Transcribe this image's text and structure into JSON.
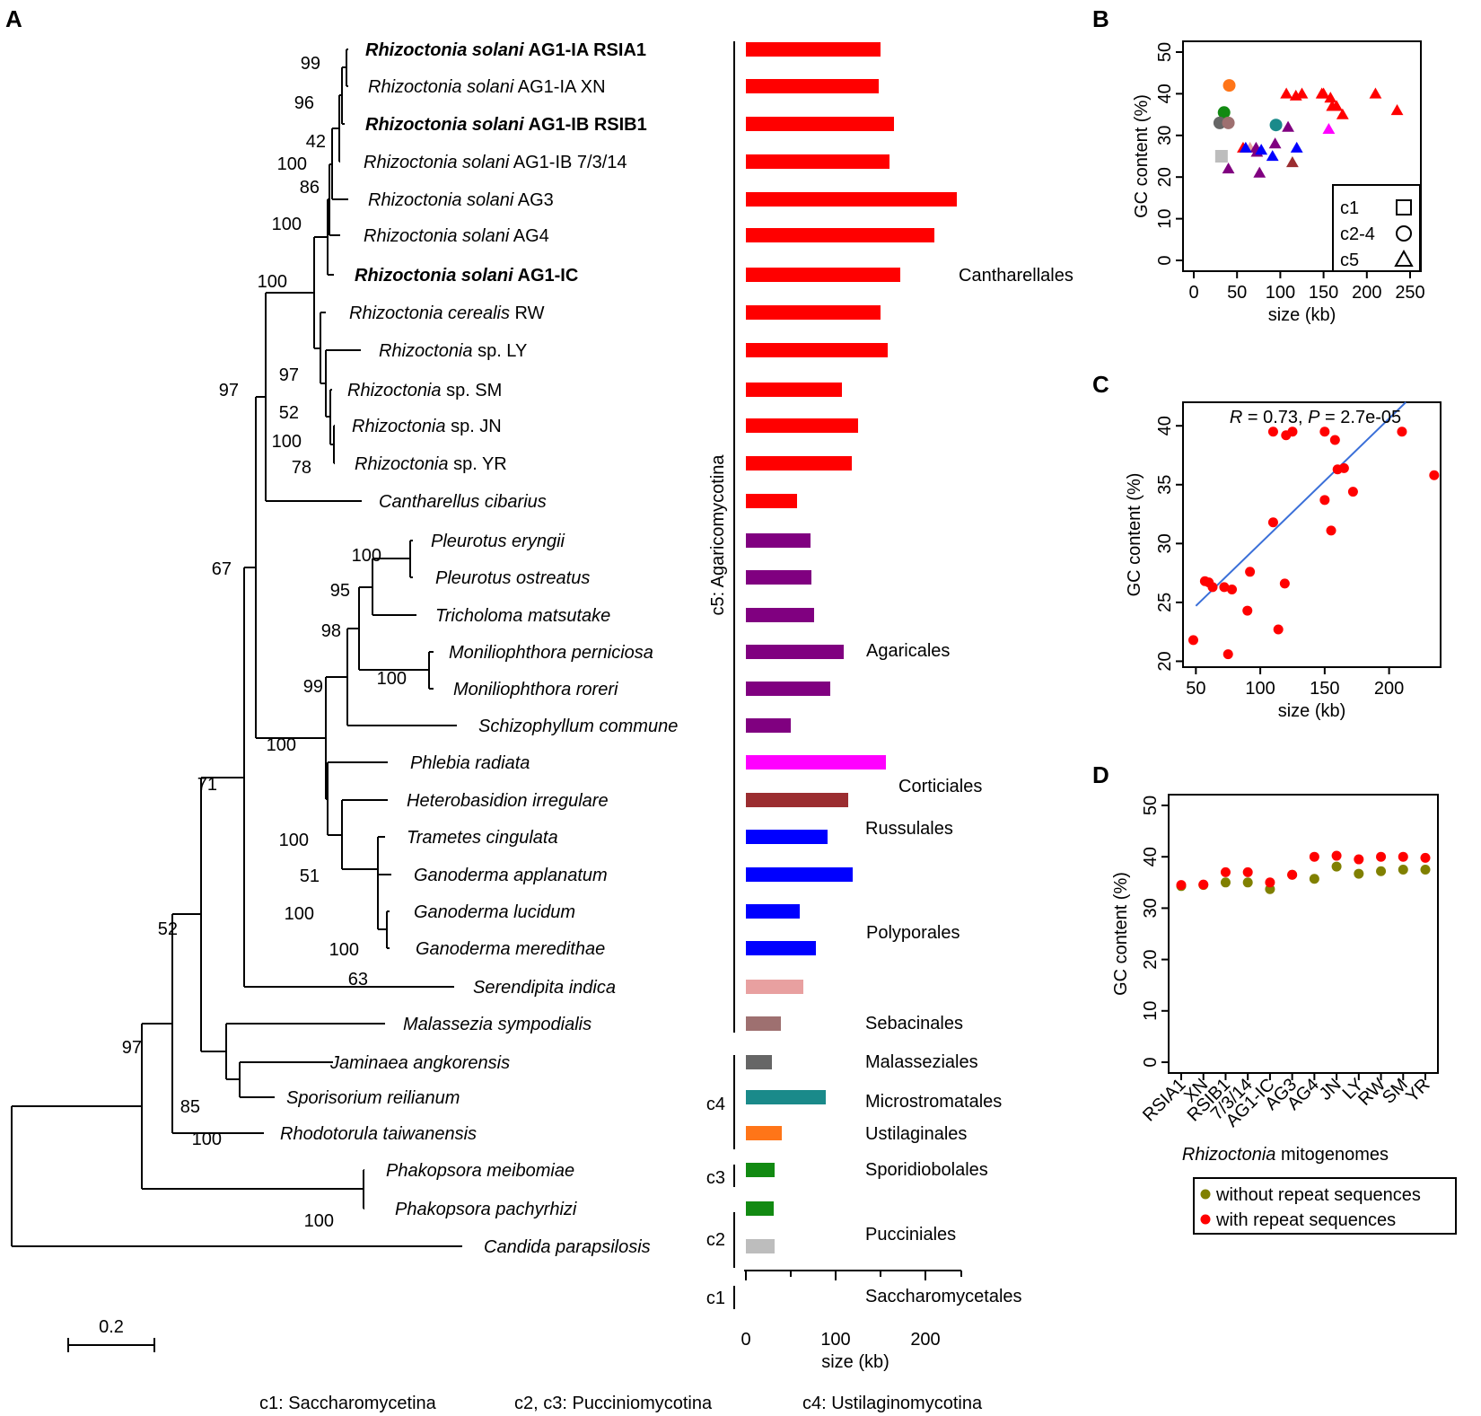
{
  "figure": {
    "panel_labels": {
      "A": "A",
      "B": "B",
      "C": "C",
      "D": "D"
    },
    "scale_bar_label": "0.2",
    "footer": {
      "c1": "c1: Saccharomycetina",
      "c23": "c2, c3: Pucciniomycotina",
      "c4": "c4: Ustilaginomycotina"
    }
  },
  "colors": {
    "Cantharellales": "#ff0000",
    "Agaricales": "#800080",
    "Corticiales": "#ff00ff",
    "Russulales": "#9b2d30",
    "Polyporales": "#0000ff",
    "Sebacinales": "#e8a0a0",
    "Malasseziales": "#9e7070",
    "Microstromatales": "#666666",
    "Ustilaginales": "#1a8a8a",
    "Sporidiobolales": "#ff7518",
    "Pucciniales": "#128a12",
    "Saccharomycetales": "#bdbdbd",
    "regression_line": "#3a6fd8",
    "without_repeat": "#808000",
    "with_repeat": "#ff0000"
  },
  "chart_data": [
    {
      "panel": "A",
      "type": "bar",
      "orientation": "horizontal",
      "title": "",
      "xlabel": "size (kb)",
      "xlim": [
        0,
        240
      ],
      "xticks": [
        0,
        100,
        200
      ],
      "categories": [
        {
          "taxon": "Rhizoctonia solani AG1-IA RSIA1",
          "genus": "Rhizoctonia solani",
          "strain": "AG1-IA RSIA1",
          "bold": true,
          "size": 150,
          "order": "Cantharellales"
        },
        {
          "taxon": "Rhizoctonia solani AG1-IA XN",
          "genus": "Rhizoctonia solani",
          "strain": "AG1-IA XN",
          "bold": false,
          "size": 148,
          "order": "Cantharellales"
        },
        {
          "taxon": "Rhizoctonia solani AG1-IB RSIB1",
          "genus": "Rhizoctonia solani",
          "strain": "AG1-IB RSIB1",
          "bold": true,
          "size": 165,
          "order": "Cantharellales"
        },
        {
          "taxon": "Rhizoctonia solani AG1-IB 7/3/14",
          "genus": "Rhizoctonia solani",
          "strain": "AG1-IB 7/3/14",
          "bold": false,
          "size": 160,
          "order": "Cantharellales"
        },
        {
          "taxon": "Rhizoctonia solani AG3",
          "genus": "Rhizoctonia solani",
          "strain": "AG3",
          "bold": false,
          "size": 235,
          "order": "Cantharellales"
        },
        {
          "taxon": "Rhizoctonia solani AG4",
          "genus": "Rhizoctonia solani",
          "strain": "AG4",
          "bold": false,
          "size": 210,
          "order": "Cantharellales"
        },
        {
          "taxon": "Rhizoctonia solani AG1-IC",
          "genus": "Rhizoctonia solani",
          "strain": "AG1-IC",
          "bold": true,
          "size": 172,
          "order": "Cantharellales"
        },
        {
          "taxon": "Rhizoctonia cerealis RW",
          "genus": "Rhizoctonia cerealis",
          "strain": "RW",
          "bold": false,
          "size": 150,
          "order": "Cantharellales"
        },
        {
          "taxon": "Rhizoctonia sp. LY",
          "genus": "Rhizoctonia",
          "strain": "sp. LY",
          "bold": false,
          "size": 158,
          "order": "Cantharellales"
        },
        {
          "taxon": "Rhizoctonia sp. SM",
          "genus": "Rhizoctonia",
          "strain": "sp. SM",
          "bold": false,
          "size": 107,
          "order": "Cantharellales"
        },
        {
          "taxon": "Rhizoctonia sp. JN",
          "genus": "Rhizoctonia",
          "strain": "sp. JN",
          "bold": false,
          "size": 125,
          "order": "Cantharellales"
        },
        {
          "taxon": "Rhizoctonia sp. YR",
          "genus": "Rhizoctonia",
          "strain": "sp. YR",
          "bold": false,
          "size": 118,
          "order": "Cantharellales"
        },
        {
          "taxon": "Cantharellus cibarius",
          "genus": "Cantharellus cibarius",
          "strain": "",
          "bold": false,
          "size": 57,
          "order": "Cantharellales"
        },
        {
          "taxon": "Pleurotus eryngii",
          "genus": "Pleurotus eryngii",
          "strain": "",
          "bold": false,
          "size": 72,
          "order": "Agaricales"
        },
        {
          "taxon": "Pleurotus ostreatus",
          "genus": "Pleurotus ostreatus",
          "strain": "",
          "bold": false,
          "size": 73,
          "order": "Agaricales"
        },
        {
          "taxon": "Tricholoma matsutake",
          "genus": "Tricholoma matsutake",
          "strain": "",
          "bold": false,
          "size": 76,
          "order": "Agaricales"
        },
        {
          "taxon": "Moniliophthora perniciosa",
          "genus": "Moniliophthora perniciosa",
          "strain": "",
          "bold": false,
          "size": 109,
          "order": "Agaricales"
        },
        {
          "taxon": "Moniliophthora roreri",
          "genus": "Moniliophthora roreri",
          "strain": "",
          "bold": false,
          "size": 94,
          "order": "Agaricales"
        },
        {
          "taxon": "Schizophyllum commune",
          "genus": "Schizophyllum commune",
          "strain": "",
          "bold": false,
          "size": 50,
          "order": "Agaricales"
        },
        {
          "taxon": "Phlebia radiata",
          "genus": "Phlebia radiata",
          "strain": "",
          "bold": false,
          "size": 156,
          "order": "Corticiales"
        },
        {
          "taxon": "Heterobasidion irregulare",
          "genus": "Heterobasidion irregulare",
          "strain": "",
          "bold": false,
          "size": 114,
          "order": "Russulales"
        },
        {
          "taxon": "Trametes cingulata",
          "genus": "Trametes cingulata",
          "strain": "",
          "bold": false,
          "size": 91,
          "order": "Polyporales"
        },
        {
          "taxon": "Ganoderma applanatum",
          "genus": "Ganoderma applanatum",
          "strain": "",
          "bold": false,
          "size": 119,
          "order": "Polyporales"
        },
        {
          "taxon": "Ganoderma lucidum",
          "genus": "Ganoderma lucidum",
          "strain": "",
          "bold": false,
          "size": 60,
          "order": "Polyporales"
        },
        {
          "taxon": "Ganoderma meredithae",
          "genus": "Ganoderma meredithae",
          "strain": "",
          "bold": false,
          "size": 78,
          "order": "Polyporales"
        },
        {
          "taxon": "Serendipita indica",
          "genus": "Serendipita indica",
          "strain": "",
          "bold": false,
          "size": 64,
          "order": "Sebacinales"
        },
        {
          "taxon": "Malassezia sympodialis",
          "genus": "Malassezia sympodialis",
          "strain": "",
          "bold": false,
          "size": 39,
          "order": "Malasseziales"
        },
        {
          "taxon": "Jaminaea angkorensis",
          "genus": "Jaminaea angkorensis",
          "strain": "",
          "bold": false,
          "size": 29,
          "order": "Microstromatales"
        },
        {
          "taxon": "Sporisorium reilianum",
          "genus": "Sporisorium reilianum",
          "strain": "",
          "bold": false,
          "size": 89,
          "order": "Ustilaginales"
        },
        {
          "taxon": "Rhodotorula taiwanensis",
          "genus": "Rhodotorula taiwanensis",
          "strain": "",
          "bold": false,
          "size": 40,
          "order": "Sporidiobolales"
        },
        {
          "taxon": "Phakopsora meibomiae",
          "genus": "Phakopsora meibomiae",
          "strain": "",
          "bold": false,
          "size": 32,
          "order": "Pucciniales"
        },
        {
          "taxon": "Phakopsora pachyrhizi",
          "genus": "Phakopsora pachyrhizi",
          "strain": "",
          "bold": false,
          "size": 31,
          "order": "Pucciniales"
        },
        {
          "taxon": "Candida parapsilosis",
          "genus": "Candida parapsilosis",
          "strain": "",
          "bold": false,
          "size": 32,
          "order": "Saccharomycetales"
        }
      ],
      "bootstrap_values": [
        "99",
        "96",
        "42",
        "100",
        "86",
        "100",
        "100",
        "97",
        "52",
        "100",
        "78",
        "97",
        "67",
        "100",
        "95",
        "98",
        "100",
        "99",
        "100",
        "71",
        "100",
        "51",
        "100",
        "100",
        "63",
        "52",
        "85",
        "100",
        "97",
        "100"
      ],
      "order_labels": [
        "Cantharellales",
        "Agaricales",
        "Corticiales",
        "Russulales",
        "Polyporales",
        "Sebacinales",
        "Malasseziales",
        "Microstromatales",
        "Ustilaginales",
        "Sporidiobolales",
        "Pucciniales",
        "Saccharomycetales"
      ],
      "clade_labels": {
        "c5": "c5: Agaricomycotina",
        "c4": "c4",
        "c3": "c3",
        "c2": "c2",
        "c1": "c1"
      }
    },
    {
      "panel": "B",
      "type": "scatter",
      "xlabel": "size (kb)",
      "ylabel": "GC content (%)",
      "xlim": [
        0,
        250
      ],
      "ylim": [
        0,
        50
      ],
      "xticks": [
        0,
        50,
        100,
        150,
        200,
        250
      ],
      "yticks": [
        0,
        10,
        20,
        30,
        40,
        50
      ],
      "legend": {
        "position": "bottom-right",
        "entries": [
          {
            "label": "c1",
            "shape": "square"
          },
          {
            "label": "c2-4",
            "shape": "circle"
          },
          {
            "label": "c5",
            "shape": "triangle"
          }
        ]
      },
      "points": [
        {
          "x": 32,
          "y": 25,
          "shape": "square",
          "color": "#bdbdbd"
        },
        {
          "x": 41,
          "y": 42,
          "shape": "circle",
          "color": "#ff7518"
        },
        {
          "x": 35,
          "y": 35.5,
          "shape": "circle",
          "color": "#128a12"
        },
        {
          "x": 30,
          "y": 33,
          "shape": "circle",
          "color": "#666666"
        },
        {
          "x": 40,
          "y": 33,
          "shape": "circle",
          "color": "#9e7070"
        },
        {
          "x": 95,
          "y": 32.5,
          "shape": "circle",
          "color": "#1a8a8a"
        },
        {
          "x": 65,
          "y": 27,
          "shape": "triangle",
          "color": "#e8a0a0"
        },
        {
          "x": 148,
          "y": 40,
          "shape": "triangle",
          "color": "#ff0000"
        },
        {
          "x": 150,
          "y": 40,
          "shape": "triangle",
          "color": "#ff0000"
        },
        {
          "x": 165,
          "y": 37,
          "shape": "triangle",
          "color": "#ff0000"
        },
        {
          "x": 160,
          "y": 37,
          "shape": "triangle",
          "color": "#ff0000"
        },
        {
          "x": 235,
          "y": 36,
          "shape": "triangle",
          "color": "#ff0000"
        },
        {
          "x": 210,
          "y": 40,
          "shape": "triangle",
          "color": "#ff0000"
        },
        {
          "x": 172,
          "y": 35,
          "shape": "triangle",
          "color": "#ff0000"
        },
        {
          "x": 158,
          "y": 39,
          "shape": "triangle",
          "color": "#ff0000"
        },
        {
          "x": 107,
          "y": 40,
          "shape": "triangle",
          "color": "#ff0000"
        },
        {
          "x": 125,
          "y": 40,
          "shape": "triangle",
          "color": "#ff0000"
        },
        {
          "x": 118,
          "y": 39.5,
          "shape": "triangle",
          "color": "#ff0000"
        },
        {
          "x": 57,
          "y": 27,
          "shape": "triangle",
          "color": "#ff0000"
        },
        {
          "x": 72,
          "y": 27,
          "shape": "triangle",
          "color": "#800080"
        },
        {
          "x": 73,
          "y": 26,
          "shape": "triangle",
          "color": "#800080"
        },
        {
          "x": 76,
          "y": 21,
          "shape": "triangle",
          "color": "#800080"
        },
        {
          "x": 109,
          "y": 32,
          "shape": "triangle",
          "color": "#800080"
        },
        {
          "x": 94,
          "y": 28,
          "shape": "triangle",
          "color": "#800080"
        },
        {
          "x": 40,
          "y": 22,
          "shape": "triangle",
          "color": "#800080"
        },
        {
          "x": 156,
          "y": 31.5,
          "shape": "triangle",
          "color": "#ff00ff"
        },
        {
          "x": 114,
          "y": 23.5,
          "shape": "triangle",
          "color": "#9b2d30"
        },
        {
          "x": 91,
          "y": 25,
          "shape": "triangle",
          "color": "#0000ff"
        },
        {
          "x": 119,
          "y": 27,
          "shape": "triangle",
          "color": "#0000ff"
        },
        {
          "x": 60,
          "y": 27,
          "shape": "triangle",
          "color": "#0000ff"
        },
        {
          "x": 78,
          "y": 26.5,
          "shape": "triangle",
          "color": "#0000ff"
        }
      ]
    },
    {
      "panel": "C",
      "type": "scatter",
      "annotation": "R = 0.73, P = 2.7e-05",
      "xlabel": "size (kb)",
      "ylabel": "GC content (%)",
      "xlim": [
        40,
        240
      ],
      "ylim": [
        19.5,
        42
      ],
      "xticks": [
        50,
        100,
        150,
        200
      ],
      "yticks": [
        20,
        25,
        30,
        35,
        40
      ],
      "fit_line": {
        "x": [
          50,
          213
        ],
        "y": [
          24.7,
          42
        ]
      },
      "points": [
        {
          "x": 48,
          "y": 21.8
        },
        {
          "x": 57,
          "y": 26.8
        },
        {
          "x": 60,
          "y": 26.7
        },
        {
          "x": 63,
          "y": 26.3
        },
        {
          "x": 72,
          "y": 26.3
        },
        {
          "x": 75,
          "y": 20.6
        },
        {
          "x": 78,
          "y": 26.1
        },
        {
          "x": 90,
          "y": 24.3
        },
        {
          "x": 92,
          "y": 27.6
        },
        {
          "x": 110,
          "y": 39.5
        },
        {
          "x": 110,
          "y": 31.8
        },
        {
          "x": 114,
          "y": 22.7
        },
        {
          "x": 119,
          "y": 26.6
        },
        {
          "x": 120,
          "y": 39.2
        },
        {
          "x": 125,
          "y": 39.5
        },
        {
          "x": 150,
          "y": 39.5
        },
        {
          "x": 150,
          "y": 33.7
        },
        {
          "x": 155,
          "y": 31.1
        },
        {
          "x": 158,
          "y": 38.8
        },
        {
          "x": 160,
          "y": 36.3
        },
        {
          "x": 165,
          "y": 36.4
        },
        {
          "x": 172,
          "y": 34.4
        },
        {
          "x": 210,
          "y": 39.5
        },
        {
          "x": 235,
          "y": 35.8
        }
      ]
    },
    {
      "panel": "D",
      "type": "scatter",
      "xlabel": "Rhizoctonia mitogenomes",
      "xlabel_italic": "Rhizoctonia",
      "xlabel_rest": " mitogenomes",
      "ylabel": "GC content (%)",
      "ylim": [
        0,
        50
      ],
      "yticks": [
        0,
        10,
        20,
        30,
        40,
        50
      ],
      "categories": [
        "RSIA1",
        "XN",
        "RSIB1",
        "7/3/14",
        "AG1-IC",
        "AG3",
        "AG4",
        "JN",
        "LY",
        "RW",
        "SM",
        "YR"
      ],
      "series": [
        {
          "name": "without repeat sequences",
          "values": [
            34.3,
            34.5,
            35.0,
            35.0,
            33.7,
            36.5,
            35.7,
            38.1,
            36.7,
            37.2,
            37.5,
            37.5
          ]
        },
        {
          "name": "with repeat sequences",
          "values": [
            34.5,
            34.6,
            37.0,
            37.0,
            35.0,
            36.5,
            40.0,
            40.2,
            39.5,
            40.0,
            40.0,
            39.8
          ]
        }
      ],
      "legend": {
        "position": "bottom",
        "entries": [
          "without repeat sequences",
          "with repeat sequences"
        ]
      }
    }
  ]
}
